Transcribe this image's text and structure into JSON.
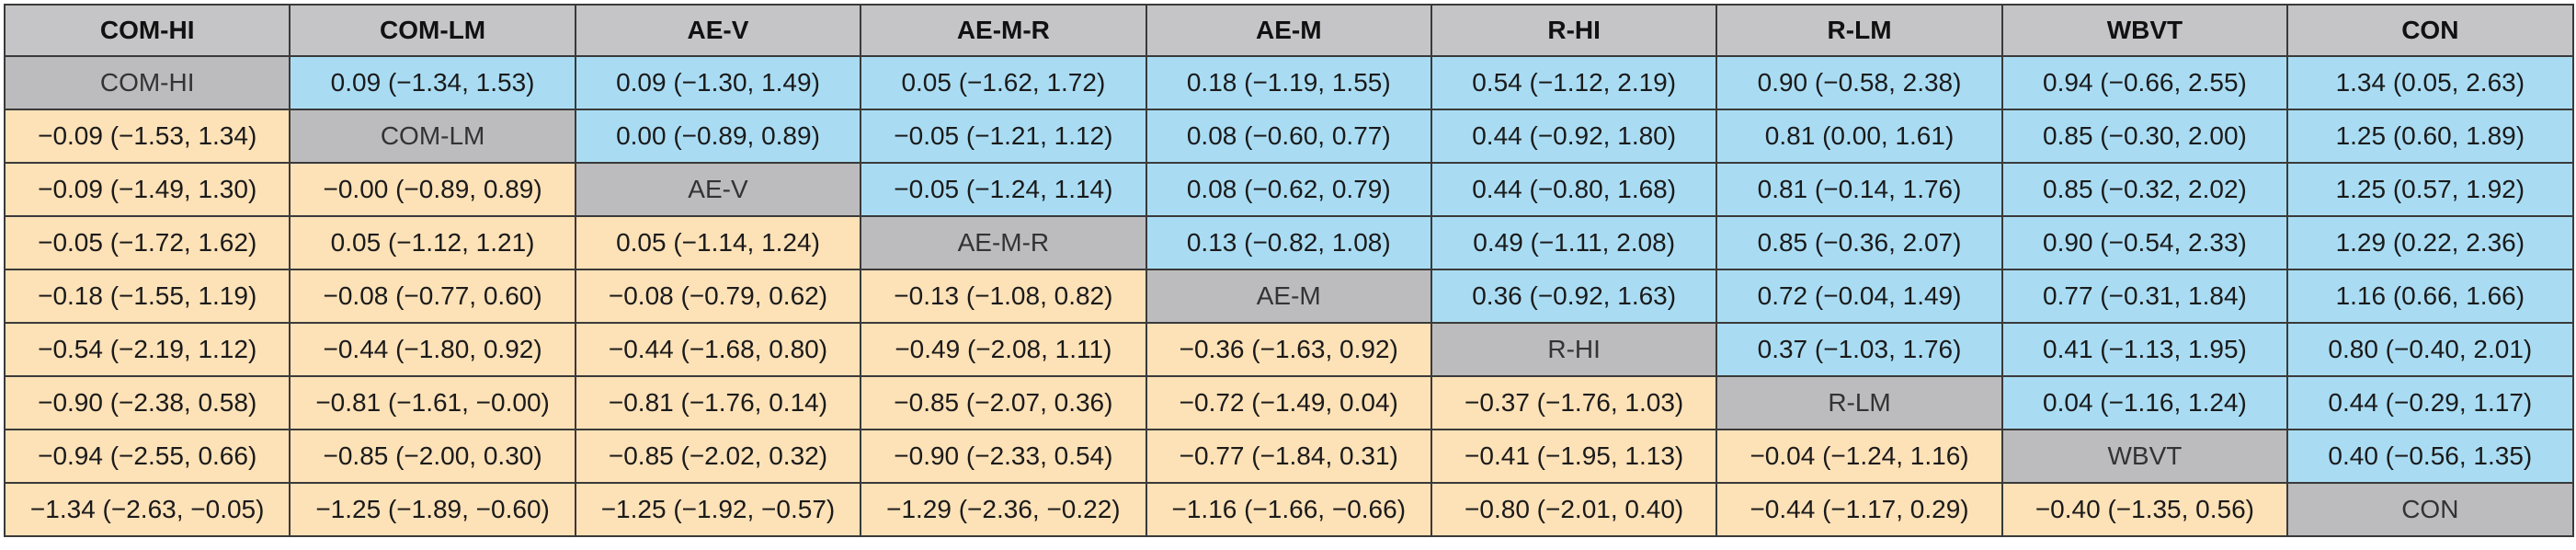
{
  "colors": {
    "header_bg": "#c5c5c7",
    "diagonal_bg": "#bcbcbe",
    "upper_bg": "#a9dcf3",
    "lower_bg": "#fde1b7"
  },
  "table": {
    "headers": [
      "COM-HI",
      "COM-LM",
      "AE-V",
      "AE-M-R",
      "AE-M",
      "R-HI",
      "R-LM",
      "WBVT",
      "CON"
    ],
    "rows": [
      [
        "COM-HI",
        "0.09 (−1.34, 1.53)",
        "0.09 (−1.30, 1.49)",
        "0.05 (−1.62, 1.72)",
        "0.18 (−1.19, 1.55)",
        "0.54 (−1.12, 2.19)",
        "0.90 (−0.58, 2.38)",
        "0.94 (−0.66, 2.55)",
        "1.34 (0.05, 2.63)"
      ],
      [
        "−0.09 (−1.53, 1.34)",
        "COM-LM",
        "0.00 (−0.89, 0.89)",
        "−0.05 (−1.21, 1.12)",
        "0.08 (−0.60, 0.77)",
        "0.44 (−0.92, 1.80)",
        "0.81 (0.00, 1.61)",
        "0.85 (−0.30, 2.00)",
        "1.25 (0.60, 1.89)"
      ],
      [
        "−0.09 (−1.49, 1.30)",
        "−0.00 (−0.89, 0.89)",
        "AE-V",
        "−0.05 (−1.24, 1.14)",
        "0.08 (−0.62, 0.79)",
        "0.44 (−0.80, 1.68)",
        "0.81 (−0.14, 1.76)",
        "0.85 (−0.32, 2.02)",
        "1.25 (0.57, 1.92)"
      ],
      [
        "−0.05 (−1.72, 1.62)",
        "0.05 (−1.12, 1.21)",
        "0.05 (−1.14, 1.24)",
        "AE-M-R",
        "0.13 (−0.82, 1.08)",
        "0.49 (−1.11, 2.08)",
        "0.85 (−0.36, 2.07)",
        "0.90 (−0.54, 2.33)",
        "1.29 (0.22, 2.36)"
      ],
      [
        "−0.18 (−1.55, 1.19)",
        "−0.08 (−0.77, 0.60)",
        "−0.08 (−0.79, 0.62)",
        "−0.13 (−1.08, 0.82)",
        "AE-M",
        "0.36 (−0.92, 1.63)",
        "0.72 (−0.04, 1.49)",
        "0.77 (−0.31, 1.84)",
        "1.16 (0.66, 1.66)"
      ],
      [
        "−0.54 (−2.19, 1.12)",
        "−0.44 (−1.80, 0.92)",
        "−0.44 (−1.68, 0.80)",
        "−0.49 (−2.08, 1.11)",
        "−0.36 (−1.63, 0.92)",
        "R-HI",
        "0.37 (−1.03, 1.76)",
        "0.41 (−1.13, 1.95)",
        "0.80 (−0.40, 2.01)"
      ],
      [
        "−0.90 (−2.38, 0.58)",
        "−0.81 (−1.61, −0.00)",
        "−0.81 (−1.76, 0.14)",
        "−0.85 (−2.07, 0.36)",
        "−0.72 (−1.49, 0.04)",
        "−0.37 (−1.76, 1.03)",
        "R-LM",
        "0.04 (−1.16, 1.24)",
        "0.44 (−0.29, 1.17)"
      ],
      [
        "−0.94 (−2.55, 0.66)",
        "−0.85 (−2.00, 0.30)",
        "−0.85 (−2.02, 0.32)",
        "−0.90 (−2.33, 0.54)",
        "−0.77 (−1.84, 0.31)",
        "−0.41 (−1.95, 1.13)",
        "−0.04 (−1.24, 1.16)",
        "WBVT",
        "0.40 (−0.56, 1.35)"
      ],
      [
        "−1.34 (−2.63, −0.05)",
        "−1.25 (−1.89, −0.60)",
        "−1.25 (−1.92, −0.57)",
        "−1.29 (−2.36, −0.22)",
        "−1.16 (−1.66, −0.66)",
        "−0.80 (−2.01, 0.40)",
        "−0.44 (−1.17, 0.29)",
        "−0.40 (−1.35, 0.56)",
        "CON"
      ]
    ]
  }
}
